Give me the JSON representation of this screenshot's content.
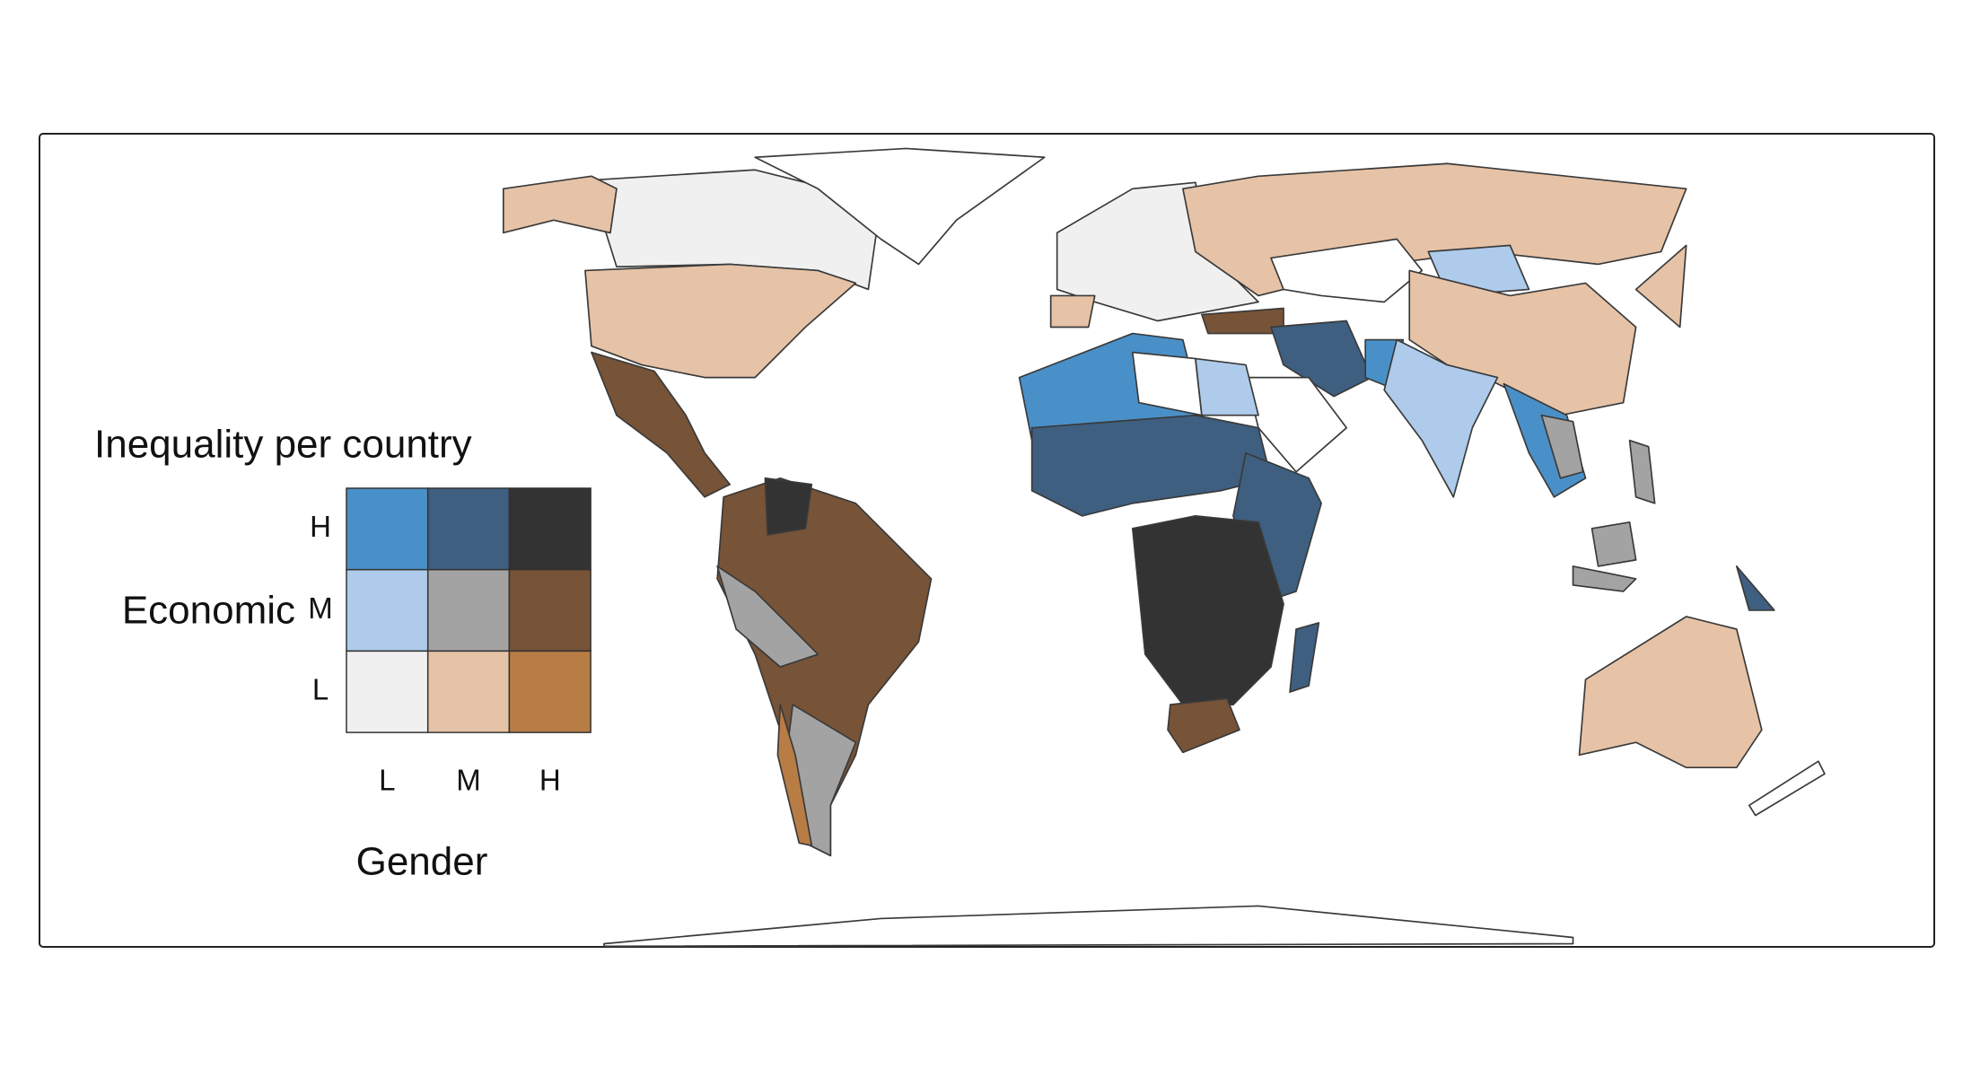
{
  "legend": {
    "title": "Inequality per country",
    "y_label": "Economic",
    "x_label": "Gender",
    "rows": [
      "H",
      "M",
      "L"
    ],
    "columns": [
      "L",
      "M",
      "H"
    ],
    "colors": [
      [
        "#4a90c8",
        "#3e5f80",
        "#333333"
      ],
      [
        "#aecbeb",
        "#a3a3a3",
        "#775337"
      ],
      [
        "#f0f0f0",
        "#e6c3a7",
        "#b87c45"
      ]
    ]
  }
}
